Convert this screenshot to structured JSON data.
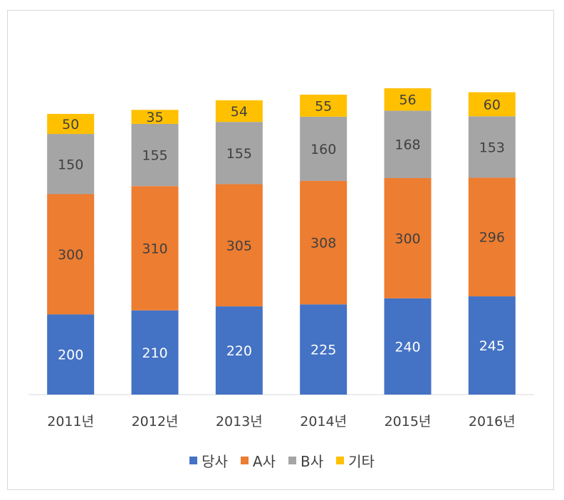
{
  "chart_data": {
    "type": "bar",
    "stacked": true,
    "title": "",
    "xlabel": "",
    "ylabel": "",
    "categories": [
      "2011년",
      "2012년",
      "2013년",
      "2014년",
      "2015년",
      "2016년"
    ],
    "series": [
      {
        "name": "당사",
        "color": "#4472c4",
        "values": [
          200,
          210,
          220,
          225,
          240,
          245
        ]
      },
      {
        "name": "A사",
        "color": "#ed7d31",
        "values": [
          300,
          310,
          305,
          308,
          300,
          296
        ]
      },
      {
        "name": "B사",
        "color": "#a5a5a5",
        "values": [
          150,
          155,
          155,
          160,
          168,
          153
        ]
      },
      {
        "name": "기타",
        "color": "#ffc000",
        "values": [
          50,
          35,
          54,
          55,
          56,
          60
        ]
      }
    ],
    "ylim": [
      0,
      800
    ],
    "grid": false,
    "legend_position": "bottom",
    "data_labels": true
  }
}
